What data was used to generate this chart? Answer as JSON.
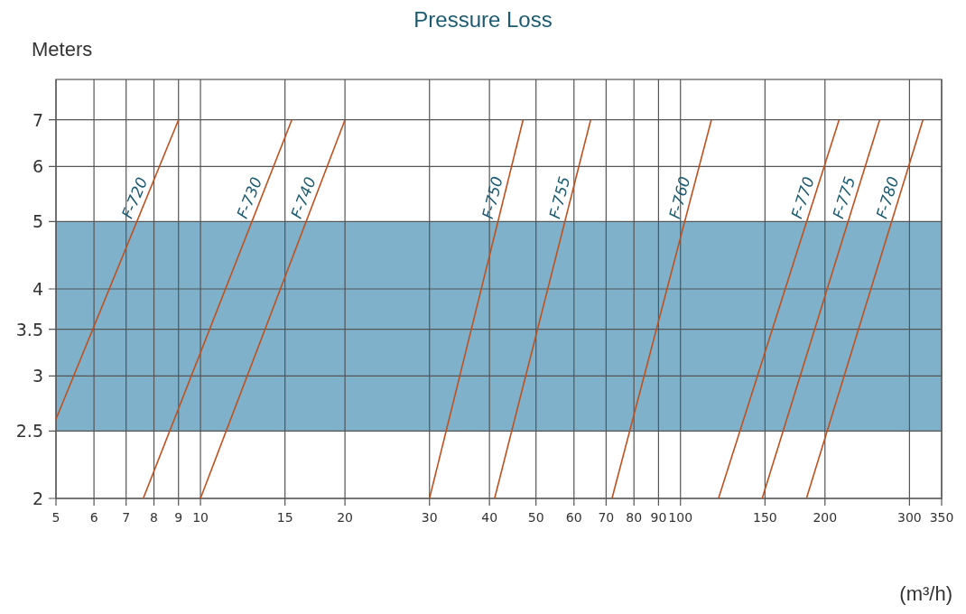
{
  "chart_data": {
    "type": "line",
    "title": "Pressure Loss",
    "ylabel": "Meters",
    "xlabel": "(m³/h)",
    "log": "xy",
    "grid": true,
    "legend": false,
    "marker": "none",
    "line_style": "solid",
    "xlim": [
      5,
      350
    ],
    "xticks": [
      5,
      6,
      7,
      8,
      9,
      10,
      15,
      20,
      30,
      40,
      50,
      60,
      70,
      80,
      90,
      100,
      150,
      200,
      300,
      350
    ],
    "ylim": [
      2,
      8
    ],
    "yticks": [
      2,
      2.5,
      3,
      3.5,
      4,
      5,
      6,
      7
    ],
    "bands": [
      {
        "axis": "y",
        "from": 2.5,
        "to": 5,
        "color": "#7fb1ca"
      }
    ],
    "series": [
      {
        "name": "F-720",
        "color": "#c0501e",
        "x": [
          5,
          9
        ],
        "values": [
          2.6,
          7
        ]
      },
      {
        "name": "F-730",
        "color": "#c0501e",
        "x": [
          7.6,
          15.5
        ],
        "values": [
          2,
          7
        ]
      },
      {
        "name": "F-740",
        "color": "#c0501e",
        "x": [
          10,
          20
        ],
        "values": [
          2,
          7
        ]
      },
      {
        "name": "F-750",
        "color": "#c0501e",
        "x": [
          30,
          47
        ],
        "values": [
          2,
          7
        ]
      },
      {
        "name": "F-755",
        "color": "#c0501e",
        "x": [
          41,
          65
        ],
        "values": [
          2,
          7
        ]
      },
      {
        "name": "F-760",
        "color": "#c0501e",
        "x": [
          72,
          116
        ],
        "values": [
          2,
          7
        ]
      },
      {
        "name": "F-770",
        "color": "#c0501e",
        "x": [
          120,
          214
        ],
        "values": [
          2,
          7
        ]
      },
      {
        "name": "F-775",
        "color": "#c0501e",
        "x": [
          148,
          260
        ],
        "values": [
          2,
          7
        ]
      },
      {
        "name": "F-780",
        "color": "#c0501e",
        "x": [
          183,
          320
        ],
        "values": [
          2,
          7
        ]
      }
    ]
  }
}
